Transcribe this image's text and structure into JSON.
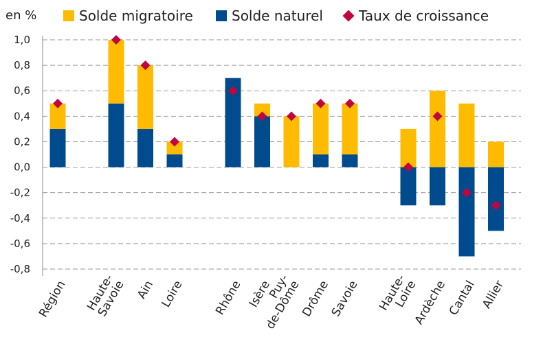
{
  "chart_data": {
    "type": "bar",
    "stacked": true,
    "ylabel": "en %",
    "ylim": [
      -0.8,
      1.0
    ],
    "yticks": [
      "-0,8",
      "-0,6",
      "-0,4",
      "-0,2",
      "0,0",
      "0,2",
      "0,4",
      "0,6",
      "0,8",
      "1,0"
    ],
    "ytick_values": [
      -0.8,
      -0.6,
      -0.4,
      -0.2,
      0.0,
      0.2,
      0.4,
      0.6,
      0.8,
      1.0
    ],
    "grid": true,
    "legend_position": "top",
    "categories": [
      {
        "label": "Région",
        "lines": [
          "Région"
        ],
        "group": 0
      },
      {
        "label": "Haute-Savoie",
        "lines": [
          "Haute-",
          "Savoie"
        ],
        "group": 1
      },
      {
        "label": "Ain",
        "lines": [
          "Ain"
        ],
        "group": 1
      },
      {
        "label": "Loire",
        "lines": [
          "Loire"
        ],
        "group": 1
      },
      {
        "label": "Rhône",
        "lines": [
          "Rhône"
        ],
        "group": 2
      },
      {
        "label": "Isère",
        "lines": [
          "Isère"
        ],
        "group": 2
      },
      {
        "label": "Puy-de-Dôme",
        "lines": [
          "Puy-",
          "de-Dôme"
        ],
        "group": 2
      },
      {
        "label": "Drôme",
        "lines": [
          "Drôme"
        ],
        "group": 2
      },
      {
        "label": "Savoie",
        "lines": [
          "Savoie"
        ],
        "group": 2
      },
      {
        "label": "Haute-Loire",
        "lines": [
          "Haute-",
          "Loire"
        ],
        "group": 3
      },
      {
        "label": "Ardèche",
        "lines": [
          "Ardèche"
        ],
        "group": 3
      },
      {
        "label": "Cantal",
        "lines": [
          "Cantal"
        ],
        "group": 3
      },
      {
        "label": "Allier",
        "lines": [
          "Allier"
        ],
        "group": 3
      }
    ],
    "series": [
      {
        "name": "Solde migratoire",
        "color": "#FFBB00",
        "kind": "bar",
        "values": [
          0.2,
          0.5,
          0.5,
          0.1,
          0.0,
          0.1,
          0.4,
          0.4,
          0.4,
          0.3,
          0.6,
          0.5,
          0.2
        ]
      },
      {
        "name": "Solde naturel",
        "color": "#004B8D",
        "kind": "bar",
        "values": [
          0.3,
          0.5,
          0.3,
          0.1,
          0.7,
          0.4,
          0.0,
          0.1,
          0.1,
          -0.3,
          -0.3,
          -0.7,
          -0.5
        ]
      },
      {
        "name": "Taux de croissance",
        "color": "#C0063F",
        "kind": "marker",
        "values": [
          0.5,
          1.0,
          0.8,
          0.2,
          0.6,
          0.4,
          0.4,
          0.5,
          0.5,
          0.0,
          0.4,
          -0.2,
          -0.3
        ]
      }
    ]
  }
}
